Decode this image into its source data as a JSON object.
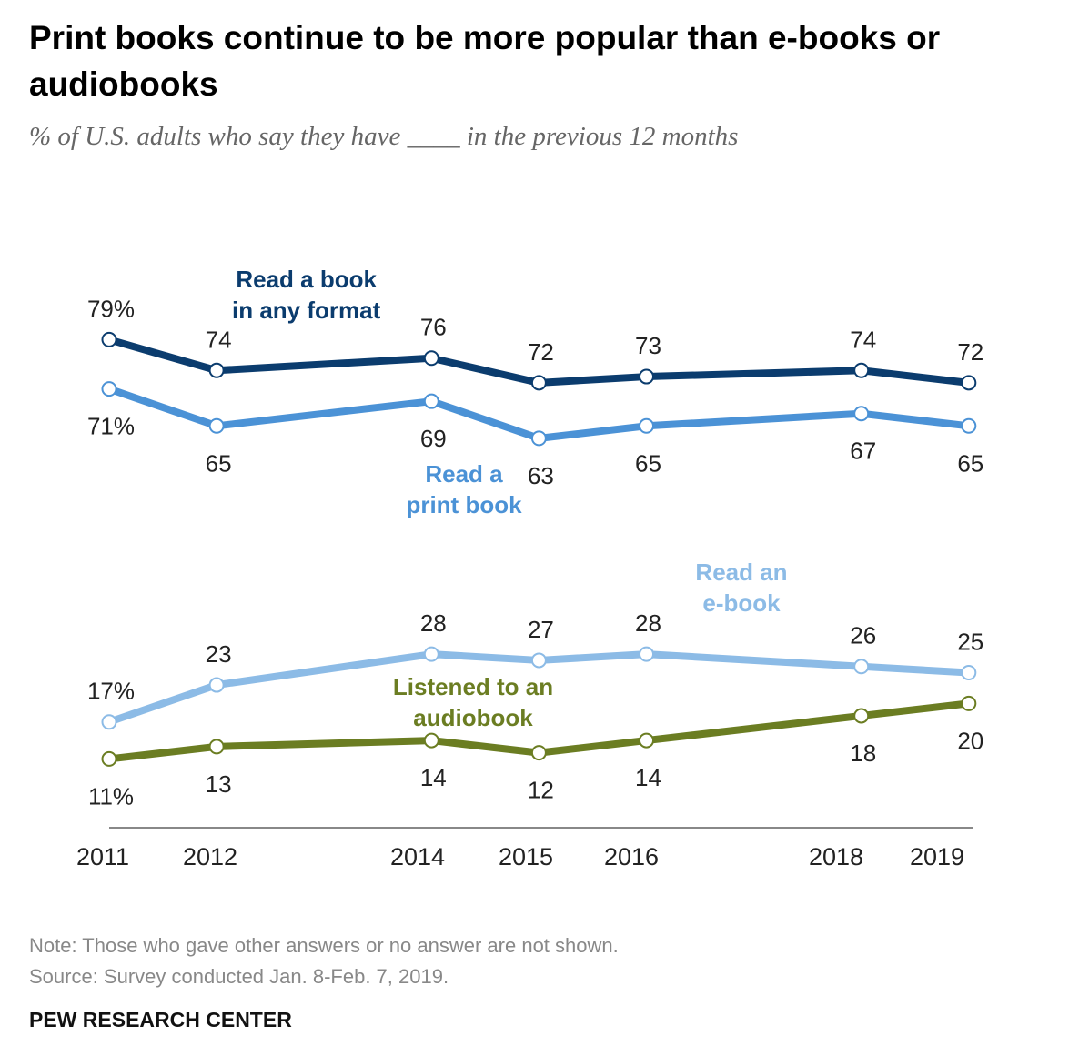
{
  "chart_data": {
    "type": "line",
    "title": "Print books continue to be more popular than e-books or audiobooks",
    "subtitle": "% of U.S. adults who say they have ____ in the previous 12 months",
    "x": [
      2011,
      2012,
      2014,
      2015,
      2016,
      2018,
      2019
    ],
    "x_tick_labels": [
      "2011",
      "2012",
      "2014",
      "2015",
      "2016",
      "2018",
      "2019"
    ],
    "ylim": [
      0,
      100
    ],
    "grid": false,
    "series": [
      {
        "name": "Read a book in any format",
        "label_lines": [
          "Read a book",
          "in any format"
        ],
        "color": "#0b3c6e",
        "label_side": "above",
        "values": [
          79,
          74,
          76,
          72,
          73,
          74,
          72
        ]
      },
      {
        "name": "Read a print book",
        "label_lines": [
          "Read a",
          "print book"
        ],
        "color": "#4b92d6",
        "label_side": "below",
        "values": [
          71,
          65,
          69,
          63,
          65,
          67,
          65
        ]
      },
      {
        "name": "Read an e-book",
        "label_lines": [
          "Read an",
          "e-book"
        ],
        "color": "#8cbbe6",
        "label_side": "above",
        "values": [
          17,
          23,
          28,
          27,
          28,
          26,
          25
        ]
      },
      {
        "name": "Listened to an audiobook",
        "label_lines": [
          "Listened to an",
          "audiobook"
        ],
        "color": "#6b7d22",
        "label_side": "below",
        "values": [
          11,
          13,
          14,
          12,
          14,
          18,
          20
        ]
      }
    ]
  },
  "note": "Note: Those who gave other answers or no answer are not shown.",
  "source": "Source: Survey conducted Jan. 8-Feb. 7, 2019.",
  "credit": "PEW RESEARCH CENTER"
}
